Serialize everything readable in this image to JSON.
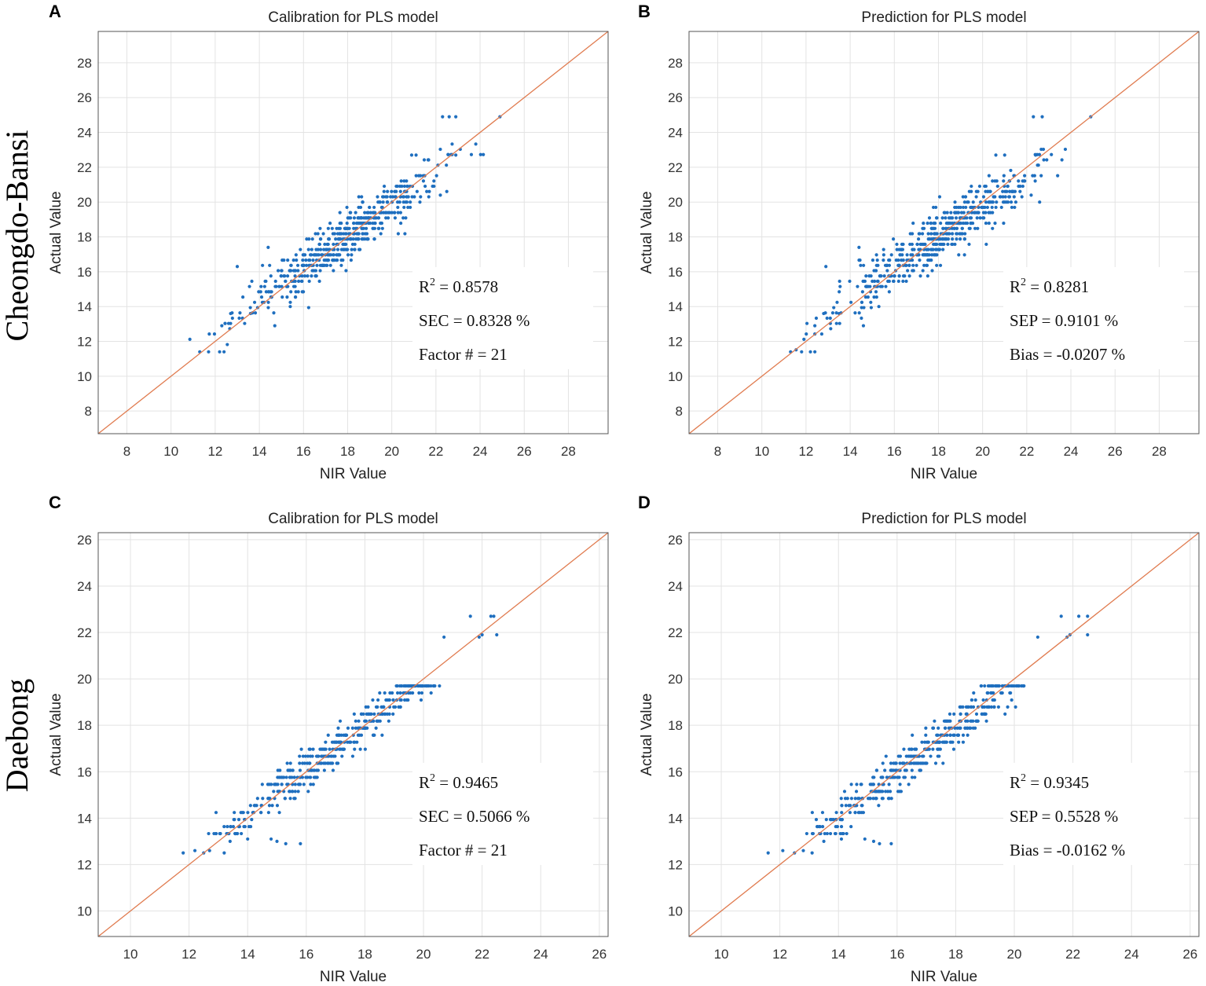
{
  "row_labels": [
    "Cheongdo-Bansi",
    "Daebong"
  ],
  "chart_data": [
    {
      "panel": "A",
      "type": "scatter",
      "title": "Calibration for PLS model",
      "xlabel": "NIR Value",
      "ylabel": "Actual Value",
      "xlim": [
        6.7,
        29.8
      ],
      "ylim": [
        6.7,
        29.8
      ],
      "xticks": [
        8,
        10,
        12,
        14,
        16,
        18,
        20,
        22,
        24,
        26,
        28
      ],
      "yticks": [
        8,
        10,
        12,
        14,
        16,
        18,
        20,
        22,
        24,
        26,
        28
      ],
      "grid": true,
      "reference_line": "y = x",
      "stats": [
        {
          "name": "R",
          "sup": "2",
          "rest": " = 0.8578"
        },
        {
          "name": "SEC = 0.8328 %",
          "sup": "",
          "rest": ""
        },
        {
          "name": "Factor # = 21",
          "sup": "",
          "rest": ""
        }
      ],
      "seed": 11,
      "n_points": 520,
      "center": 17.8,
      "spread": 2.1,
      "noise": 0.75,
      "points": [
        [
          11.3,
          11.4
        ],
        [
          11.7,
          11.4
        ],
        [
          12.2,
          11.4
        ],
        [
          12.4,
          11.4
        ],
        [
          12.3,
          12.9
        ],
        [
          12.7,
          13.6
        ],
        [
          13.0,
          16.3
        ],
        [
          13.6,
          13.6
        ],
        [
          14.4,
          17.4
        ],
        [
          22.3,
          24.9
        ],
        [
          22.6,
          24.9
        ],
        [
          22.9,
          24.9
        ],
        [
          24.9,
          24.9
        ],
        [
          22.2,
          20.4
        ],
        [
          22.9,
          22.7
        ],
        [
          21.1,
          22.7
        ],
        [
          20.9,
          22.7
        ],
        [
          15.4,
          14.0
        ],
        [
          14.7,
          12.9
        ]
      ]
    },
    {
      "panel": "B",
      "type": "scatter",
      "title": "Prediction for PLS model",
      "xlabel": "NIR Value",
      "ylabel": "Actual Value",
      "xlim": [
        6.7,
        29.8
      ],
      "ylim": [
        6.7,
        29.8
      ],
      "xticks": [
        8,
        10,
        12,
        14,
        16,
        18,
        20,
        22,
        24,
        26,
        28
      ],
      "yticks": [
        8,
        10,
        12,
        14,
        16,
        18,
        20,
        22,
        24,
        26,
        28
      ],
      "grid": true,
      "reference_line": "y = x",
      "stats": [
        {
          "name": "R",
          "sup": "2",
          "rest": " = 0.8281"
        },
        {
          "name": "SEP = 0.9101 %",
          "sup": "",
          "rest": ""
        },
        {
          "name": "Bias = -0.0207 %",
          "sup": "",
          "rest": ""
        }
      ],
      "seed": 23,
      "n_points": 520,
      "center": 17.8,
      "spread": 2.1,
      "noise": 0.8,
      "points": [
        [
          11.3,
          11.4
        ],
        [
          11.8,
          11.4
        ],
        [
          12.2,
          11.4
        ],
        [
          12.4,
          11.4
        ],
        [
          12.4,
          12.9
        ],
        [
          12.8,
          13.6
        ],
        [
          12.9,
          16.3
        ],
        [
          13.5,
          13.6
        ],
        [
          14.4,
          17.4
        ],
        [
          22.3,
          24.9
        ],
        [
          22.7,
          24.9
        ],
        [
          24.9,
          24.9
        ],
        [
          22.2,
          20.4
        ],
        [
          22.4,
          22.7
        ],
        [
          20.6,
          22.7
        ],
        [
          21.0,
          22.7
        ],
        [
          15.3,
          14.0
        ],
        [
          14.6,
          12.9
        ]
      ]
    },
    {
      "panel": "C",
      "type": "scatter",
      "title": "Calibration for PLS model",
      "xlabel": "NIR Value",
      "ylabel": "Actual Value",
      "xlim": [
        8.9,
        26.3
      ],
      "ylim": [
        8.9,
        26.3
      ],
      "xticks": [
        10,
        12,
        14,
        16,
        18,
        20,
        22,
        24,
        26
      ],
      "yticks": [
        10,
        12,
        14,
        16,
        18,
        20,
        22,
        24,
        26
      ],
      "grid": true,
      "reference_line": "y = x",
      "stats": [
        {
          "name": "R",
          "sup": "2",
          "rest": " = 0.9465"
        },
        {
          "name": "SEC = 0.5066 %",
          "sup": "",
          "rest": ""
        },
        {
          "name": "Factor # = 21",
          "sup": "",
          "rest": ""
        }
      ],
      "seed": 37,
      "n_points": 430,
      "center": 17.0,
      "spread": 2.0,
      "noise": 0.42,
      "points": [
        [
          11.8,
          12.5
        ],
        [
          12.2,
          12.6
        ],
        [
          12.5,
          12.5
        ],
        [
          12.7,
          12.6
        ],
        [
          13.2,
          12.5
        ],
        [
          13.4,
          13.0
        ],
        [
          14.0,
          13.1
        ],
        [
          14.8,
          13.1
        ],
        [
          15.0,
          13.0
        ],
        [
          15.3,
          12.9
        ],
        [
          15.8,
          12.9
        ],
        [
          21.6,
          22.7
        ],
        [
          22.3,
          22.7
        ],
        [
          22.4,
          22.7
        ],
        [
          22.5,
          21.9
        ],
        [
          22.0,
          21.9
        ],
        [
          20.7,
          21.8
        ],
        [
          21.9,
          21.8
        ]
      ]
    },
    {
      "panel": "D",
      "type": "scatter",
      "title": "Prediction for PLS model",
      "xlabel": "NIR Value",
      "ylabel": "Actual Value",
      "xlim": [
        8.9,
        26.3
      ],
      "ylim": [
        8.9,
        26.3
      ],
      "xticks": [
        10,
        12,
        14,
        16,
        18,
        20,
        22,
        24,
        26
      ],
      "yticks": [
        10,
        12,
        14,
        16,
        18,
        20,
        22,
        24,
        26
      ],
      "grid": true,
      "reference_line": "y = x",
      "stats": [
        {
          "name": "R",
          "sup": "2",
          "rest": " = 0.9345"
        },
        {
          "name": "SEP = 0.5528 %",
          "sup": "",
          "rest": ""
        },
        {
          "name": "Bias = -0.0162 %",
          "sup": "",
          "rest": ""
        }
      ],
      "seed": 51,
      "n_points": 430,
      "center": 17.0,
      "spread": 2.0,
      "noise": 0.45,
      "points": [
        [
          11.6,
          12.5
        ],
        [
          12.1,
          12.6
        ],
        [
          12.5,
          12.5
        ],
        [
          12.8,
          12.6
        ],
        [
          13.1,
          12.5
        ],
        [
          13.5,
          13.0
        ],
        [
          14.1,
          13.1
        ],
        [
          14.9,
          13.1
        ],
        [
          15.2,
          13.0
        ],
        [
          15.4,
          12.9
        ],
        [
          15.8,
          12.9
        ],
        [
          21.6,
          22.7
        ],
        [
          22.2,
          22.7
        ],
        [
          22.5,
          22.7
        ],
        [
          22.5,
          21.9
        ],
        [
          21.9,
          21.9
        ],
        [
          20.8,
          21.8
        ],
        [
          21.8,
          21.8
        ]
      ]
    }
  ]
}
